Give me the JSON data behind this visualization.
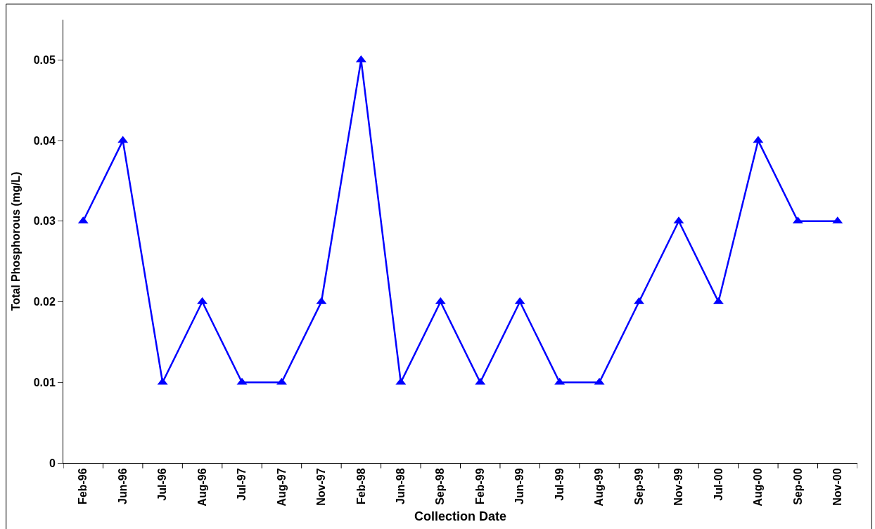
{
  "chart_data": {
    "type": "line",
    "xlabel": "Collection Date",
    "ylabel": "Total Phosphorous (mg/L)",
    "categories": [
      "Feb-96",
      "Jun-96",
      "Jul-96",
      "Aug-96",
      "Jul-97",
      "Aug-97",
      "Nov-97",
      "Feb-98",
      "Jun-98",
      "Sep-98",
      "Feb-99",
      "Jun-99",
      "Jul-99",
      "Aug-99",
      "Sep-99",
      "Nov-99",
      "Jul-00",
      "Aug-00",
      "Sep-00",
      "Nov-00"
    ],
    "series": [
      {
        "color": "#0000ff",
        "values": [
          0.03,
          0.04,
          0.01,
          0.02,
          0.01,
          0.01,
          0.02,
          0.05,
          0.01,
          0.02,
          0.01,
          0.02,
          0.01,
          0.01,
          0.02,
          0.03,
          0.02,
          0.04,
          0.03,
          0.03
        ]
      }
    ],
    "ylim": [
      0,
      0.055
    ],
    "yticks": [
      0,
      0.01,
      0.02,
      0.03,
      0.04,
      0.05
    ],
    "marker": "triangle",
    "line_style": "solid"
  }
}
